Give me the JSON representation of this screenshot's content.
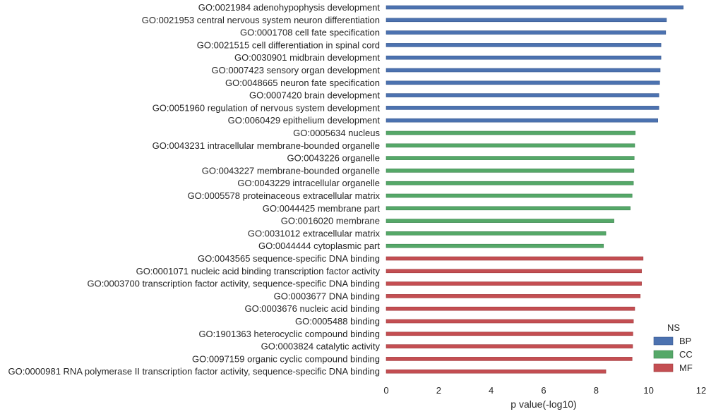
{
  "chart_data": {
    "type": "bar",
    "orientation": "horizontal",
    "xlabel": "p value(-log10)",
    "xlim": [
      0,
      12
    ],
    "xticks": [
      "0",
      "2",
      "4",
      "6",
      "8",
      "10",
      "12"
    ],
    "grid": false,
    "legend": {
      "title": "NS",
      "placement": "bottom-right",
      "entries": [
        {
          "name": "BP",
          "color": "#4c72b0"
        },
        {
          "name": "CC",
          "color": "#55a868"
        },
        {
          "name": "MF",
          "color": "#c44e52"
        }
      ]
    },
    "bars": [
      {
        "label": "GO:0021984 adenohypophysis development",
        "value": 11.32,
        "group": "BP"
      },
      {
        "label": "GO:0021953 central nervous system neuron differentiation",
        "value": 10.68,
        "group": "BP"
      },
      {
        "label": "GO:0001708 cell fate specification",
        "value": 10.65,
        "group": "BP"
      },
      {
        "label": "GO:0021515 cell differentiation in spinal cord",
        "value": 10.47,
        "group": "BP"
      },
      {
        "label": "GO:0030901 midbrain development",
        "value": 10.47,
        "group": "BP"
      },
      {
        "label": "GO:0007423 sensory organ development",
        "value": 10.44,
        "group": "BP"
      },
      {
        "label": "GO:0048665 neuron fate specification",
        "value": 10.42,
        "group": "BP"
      },
      {
        "label": "GO:0007420 brain development",
        "value": 10.39,
        "group": "BP"
      },
      {
        "label": "GO:0051960 regulation of nervous system development",
        "value": 10.39,
        "group": "BP"
      },
      {
        "label": "GO:0060429 epithelium development",
        "value": 10.35,
        "group": "BP"
      },
      {
        "label": "GO:0005634 nucleus",
        "value": 9.49,
        "group": "CC"
      },
      {
        "label": "GO:0043231 intracellular membrane-bounded organelle",
        "value": 9.47,
        "group": "CC"
      },
      {
        "label": "GO:0043226 organelle",
        "value": 9.45,
        "group": "CC"
      },
      {
        "label": "GO:0043227 membrane-bounded organelle",
        "value": 9.44,
        "group": "CC"
      },
      {
        "label": "GO:0043229 intracellular organelle",
        "value": 9.42,
        "group": "CC"
      },
      {
        "label": "GO:0005578 proteinaceous extracellular matrix",
        "value": 9.37,
        "group": "CC"
      },
      {
        "label": "GO:0044425 membrane part",
        "value": 9.3,
        "group": "CC"
      },
      {
        "label": "GO:0016020 membrane",
        "value": 8.68,
        "group": "CC"
      },
      {
        "label": "GO:0031012 extracellular matrix",
        "value": 8.37,
        "group": "CC"
      },
      {
        "label": "GO:0044444 cytoplasmic part",
        "value": 8.28,
        "group": "CC"
      },
      {
        "label": "GO:0043565 sequence-specific DNA binding",
        "value": 9.79,
        "group": "MF"
      },
      {
        "label": "GO:0001071 nucleic acid binding transcription factor activity",
        "value": 9.73,
        "group": "MF"
      },
      {
        "label": "GO:0003700 transcription factor activity, sequence-specific DNA binding",
        "value": 9.73,
        "group": "MF"
      },
      {
        "label": "GO:0003677 DNA binding",
        "value": 9.68,
        "group": "MF"
      },
      {
        "label": "GO:0003676 nucleic acid binding",
        "value": 9.47,
        "group": "MF"
      },
      {
        "label": "GO:0005488 binding",
        "value": 9.42,
        "group": "MF"
      },
      {
        "label": "GO:1901363 heterocyclic compound binding",
        "value": 9.4,
        "group": "MF"
      },
      {
        "label": "GO:0003824 catalytic activity",
        "value": 9.39,
        "group": "MF"
      },
      {
        "label": "GO:0097159 organic cyclic compound binding",
        "value": 9.37,
        "group": "MF"
      },
      {
        "label": "GO:0000981 RNA polymerase II transcription factor activity, sequence-specific DNA binding",
        "value": 8.37,
        "group": "MF"
      }
    ]
  }
}
